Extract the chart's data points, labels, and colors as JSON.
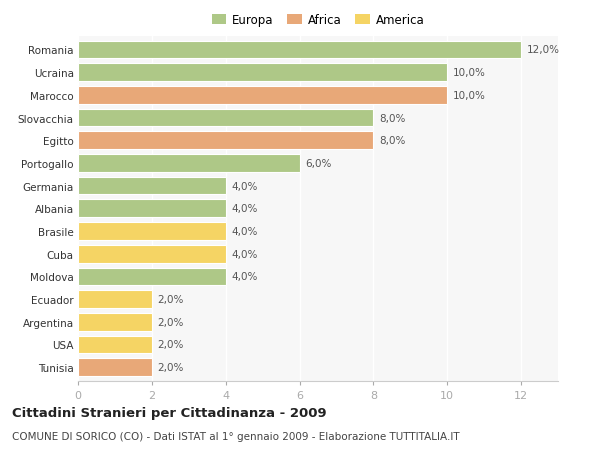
{
  "categories": [
    "Romania",
    "Ucraina",
    "Marocco",
    "Slovacchia",
    "Egitto",
    "Portogallo",
    "Germania",
    "Albania",
    "Brasile",
    "Cuba",
    "Moldova",
    "Ecuador",
    "Argentina",
    "USA",
    "Tunisia"
  ],
  "values": [
    12.0,
    10.0,
    10.0,
    8.0,
    8.0,
    6.0,
    4.0,
    4.0,
    4.0,
    4.0,
    4.0,
    2.0,
    2.0,
    2.0,
    2.0
  ],
  "colors": [
    "#aec887",
    "#aec887",
    "#e8a878",
    "#aec887",
    "#e8a878",
    "#aec887",
    "#aec887",
    "#aec887",
    "#f5d464",
    "#f5d464",
    "#aec887",
    "#f5d464",
    "#f5d464",
    "#f5d464",
    "#e8a878"
  ],
  "labels": [
    "12,0%",
    "10,0%",
    "10,0%",
    "8,0%",
    "8,0%",
    "6,0%",
    "4,0%",
    "4,0%",
    "4,0%",
    "4,0%",
    "4,0%",
    "2,0%",
    "2,0%",
    "2,0%",
    "2,0%"
  ],
  "legend": [
    {
      "label": "Europa",
      "color": "#aec887"
    },
    {
      "label": "Africa",
      "color": "#e8a878"
    },
    {
      "label": "America",
      "color": "#f5d464"
    }
  ],
  "xlim": [
    0,
    13
  ],
  "xticks": [
    0,
    2,
    4,
    6,
    8,
    10,
    12
  ],
  "title": "Cittadini Stranieri per Cittadinanza - 2009",
  "subtitle": "COMUNE DI SORICO (CO) - Dati ISTAT al 1° gennaio 2009 - Elaborazione TUTTITALIA.IT",
  "title_fontsize": 9.5,
  "subtitle_fontsize": 7.5,
  "background_color": "#ffffff",
  "plot_bg_color": "#f7f7f7",
  "label_fontsize": 7.5,
  "ytick_fontsize": 7.5,
  "xtick_fontsize": 8,
  "bar_height": 0.78,
  "legend_fontsize": 8.5
}
